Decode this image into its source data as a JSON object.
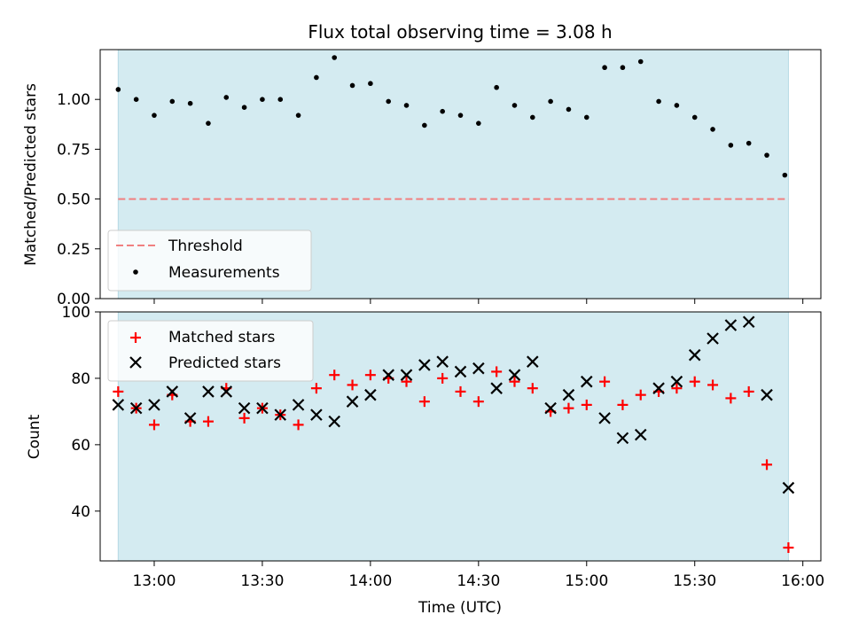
{
  "chart_data": [
    {
      "type": "scatter",
      "title": "Flux total observing time = 3.08 h",
      "ylabel": "Matched/Predicted stars",
      "ylim": [
        0,
        1.25
      ],
      "yticks": [
        0.0,
        0.25,
        0.5,
        0.75,
        1.0
      ],
      "ytick_labels": [
        "0.00",
        "0.25",
        "0.50",
        "0.75",
        "1.00"
      ],
      "xlim": [
        "12:45",
        "16:05"
      ],
      "shaded_span": [
        "12:50",
        "15:56"
      ],
      "shade_color": "#d4ebf1",
      "threshold": {
        "name": "Threshold",
        "value": 0.5,
        "color": "#f08080"
      },
      "legend_position": "lower-left",
      "legend": [
        "Threshold",
        "Measurements"
      ],
      "series": [
        {
          "name": "Measurements",
          "marker": "dot",
          "color": "#000000",
          "x": [
            "12:50",
            "12:55",
            "13:00",
            "13:05",
            "13:10",
            "13:15",
            "13:20",
            "13:25",
            "13:30",
            "13:35",
            "13:40",
            "13:45",
            "13:50",
            "13:55",
            "14:00",
            "14:05",
            "14:10",
            "14:15",
            "14:20",
            "14:25",
            "14:30",
            "14:35",
            "14:40",
            "14:45",
            "14:50",
            "14:55",
            "15:00",
            "15:05",
            "15:10",
            "15:15",
            "15:20",
            "15:25",
            "15:30",
            "15:35",
            "15:40",
            "15:45",
            "15:50",
            "15:55"
          ],
          "y": [
            1.05,
            1.0,
            0.92,
            0.99,
            0.98,
            0.88,
            1.01,
            0.96,
            1.0,
            1.0,
            0.92,
            1.11,
            1.21,
            1.07,
            1.08,
            0.99,
            0.97,
            0.87,
            0.94,
            0.92,
            0.88,
            1.06,
            0.97,
            0.91,
            0.99,
            0.95,
            0.91,
            1.16,
            1.16,
            1.19,
            0.99,
            0.97,
            0.91,
            0.85,
            0.77,
            0.78,
            0.72,
            0.62
          ]
        }
      ]
    },
    {
      "type": "scatter",
      "xlabel": "Time (UTC)",
      "ylabel": "Count",
      "ylim": [
        25,
        100
      ],
      "yticks": [
        40,
        60,
        80,
        100
      ],
      "ytick_labels": [
        "40",
        "60",
        "80",
        "100"
      ],
      "xlim": [
        "12:45",
        "16:05"
      ],
      "xticks": [
        "13:00",
        "13:30",
        "14:00",
        "14:30",
        "15:00",
        "15:30",
        "16:00"
      ],
      "shaded_span": [
        "12:50",
        "15:56"
      ],
      "shade_color": "#d4ebf1",
      "legend_position": "upper-left",
      "legend": [
        "Matched stars",
        "Predicted stars"
      ],
      "series": [
        {
          "name": "Matched stars",
          "marker": "plus",
          "color": "#ff0000",
          "x": [
            "12:50",
            "12:55",
            "13:00",
            "13:05",
            "13:10",
            "13:15",
            "13:20",
            "13:25",
            "13:30",
            "13:35",
            "13:40",
            "13:45",
            "13:50",
            "13:55",
            "14:00",
            "14:05",
            "14:10",
            "14:15",
            "14:20",
            "14:25",
            "14:30",
            "14:35",
            "14:40",
            "14:45",
            "14:50",
            "14:55",
            "15:00",
            "15:05",
            "15:10",
            "15:15",
            "15:20",
            "15:25",
            "15:30",
            "15:35",
            "15:40",
            "15:45",
            "15:50",
            "15:56"
          ],
          "y": [
            76,
            71,
            66,
            75,
            67,
            67,
            77,
            68,
            71,
            69,
            66,
            77,
            81,
            78,
            81,
            80,
            79,
            73,
            80,
            76,
            73,
            82,
            79,
            77,
            70,
            71,
            72,
            79,
            72,
            75,
            76,
            77,
            79,
            78,
            74,
            76,
            54,
            29
          ]
        },
        {
          "name": "Predicted stars",
          "marker": "x",
          "color": "#000000",
          "x": [
            "12:50",
            "12:55",
            "13:00",
            "13:05",
            "13:10",
            "13:15",
            "13:20",
            "13:25",
            "13:30",
            "13:35",
            "13:40",
            "13:45",
            "13:50",
            "13:55",
            "14:00",
            "14:05",
            "14:10",
            "14:15",
            "14:20",
            "14:25",
            "14:30",
            "14:35",
            "14:40",
            "14:45",
            "14:50",
            "14:55",
            "15:00",
            "15:05",
            "15:10",
            "15:15",
            "15:20",
            "15:25",
            "15:30",
            "15:35",
            "15:40",
            "15:45",
            "15:50",
            "15:56"
          ],
          "y": [
            72,
            71,
            72,
            76,
            68,
            76,
            76,
            71,
            71,
            69,
            72,
            69,
            67,
            73,
            75,
            81,
            81,
            84,
            85,
            82,
            83,
            77,
            81,
            85,
            71,
            75,
            79,
            68,
            62,
            63,
            77,
            79,
            87,
            92,
            96,
            97,
            75,
            47
          ]
        }
      ]
    }
  ]
}
